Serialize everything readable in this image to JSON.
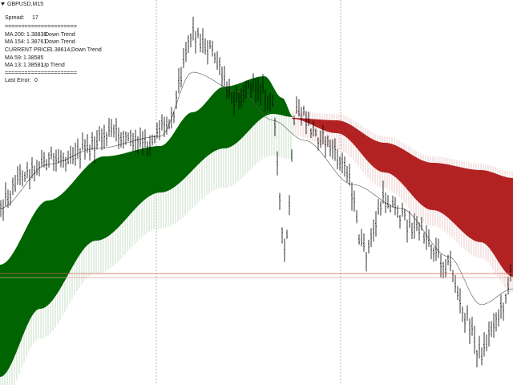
{
  "header": {
    "symbol": "GBPUSD,M15"
  },
  "info": {
    "spread_label": "Spread:",
    "spread": "17",
    "separator_top": "======================",
    "rows": [
      {
        "label": "MA 200:",
        "value": "1.38838",
        "trend": "Down Trend"
      },
      {
        "label": "MA 154:",
        "value": "1.38761",
        "trend": "Down Trend"
      },
      {
        "label": "CURRENT PRICE:",
        "value": "1.38614,",
        "trend": "Down Trend"
      },
      {
        "label": "MA 59:",
        "value": "1.38585"
      },
      {
        "label": "MA 13:",
        "value": "1.38581",
        "trend": "Up Trend"
      }
    ],
    "separator_bottom": "======================",
    "last_error_label": "Last Error:",
    "last_error": "0"
  }
}
